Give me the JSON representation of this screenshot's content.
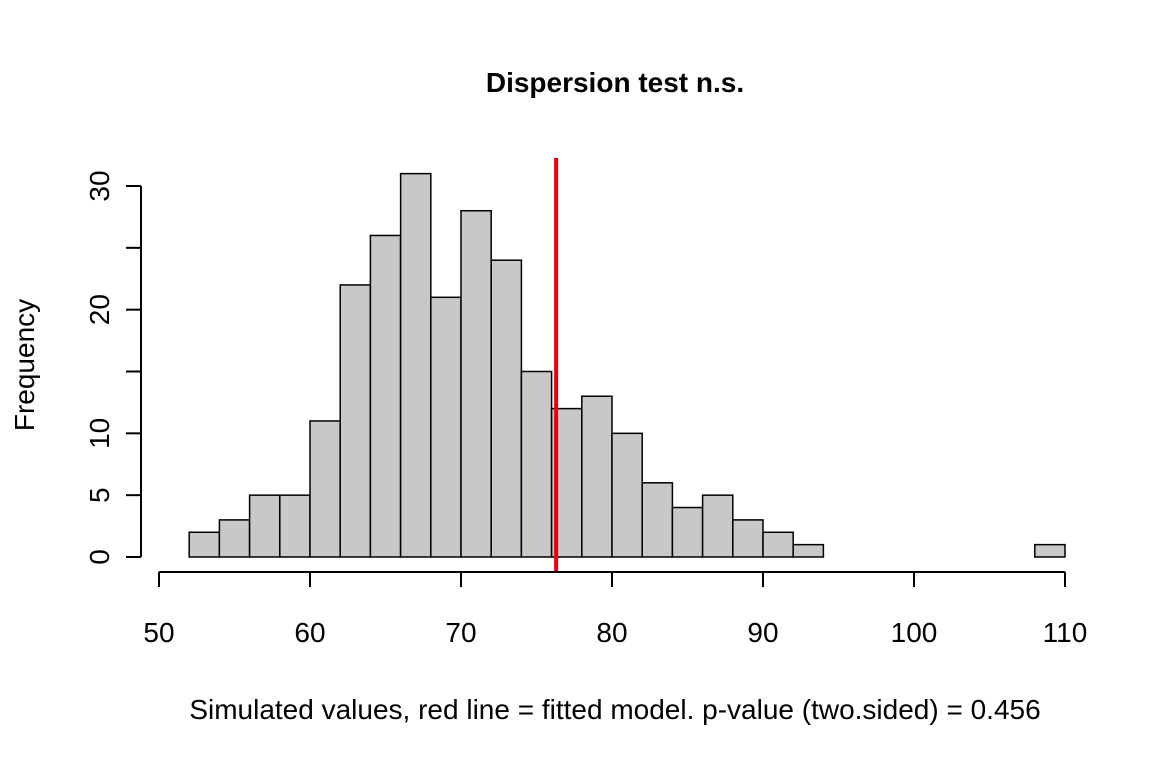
{
  "chart_data": {
    "type": "bar",
    "title": "Dispersion test n.s.",
    "xlabel": "Simulated values, red line = fitted model. p-value (two.sided) = 0.456",
    "ylabel": "Frequency",
    "xlim": [
      50,
      110
    ],
    "ylim": [
      0,
      31
    ],
    "x_ticks": [
      50,
      60,
      70,
      80,
      90,
      100,
      110
    ],
    "y_ticks": [
      0,
      5,
      10,
      15,
      20,
      25,
      30
    ],
    "y_tick_labels": [
      "0",
      "5",
      "10",
      "",
      "20",
      "",
      "30"
    ],
    "bin_width": 2,
    "bins": [
      {
        "start": 52,
        "end": 54,
        "count": 2
      },
      {
        "start": 54,
        "end": 56,
        "count": 3
      },
      {
        "start": 56,
        "end": 58,
        "count": 5
      },
      {
        "start": 58,
        "end": 60,
        "count": 5
      },
      {
        "start": 60,
        "end": 62,
        "count": 11
      },
      {
        "start": 62,
        "end": 64,
        "count": 22
      },
      {
        "start": 64,
        "end": 66,
        "count": 26
      },
      {
        "start": 66,
        "end": 68,
        "count": 31
      },
      {
        "start": 68,
        "end": 70,
        "count": 21
      },
      {
        "start": 70,
        "end": 72,
        "count": 28
      },
      {
        "start": 72,
        "end": 74,
        "count": 24
      },
      {
        "start": 74,
        "end": 76,
        "count": 15
      },
      {
        "start": 76,
        "end": 78,
        "count": 12
      },
      {
        "start": 78,
        "end": 80,
        "count": 13
      },
      {
        "start": 80,
        "end": 82,
        "count": 10
      },
      {
        "start": 82,
        "end": 84,
        "count": 6
      },
      {
        "start": 84,
        "end": 86,
        "count": 4
      },
      {
        "start": 86,
        "end": 88,
        "count": 5
      },
      {
        "start": 88,
        "end": 90,
        "count": 3
      },
      {
        "start": 90,
        "end": 92,
        "count": 2
      },
      {
        "start": 92,
        "end": 94,
        "count": 1
      },
      {
        "start": 94,
        "end": 96,
        "count": 0
      },
      {
        "start": 96,
        "end": 98,
        "count": 0
      },
      {
        "start": 98,
        "end": 100,
        "count": 0
      },
      {
        "start": 100,
        "end": 102,
        "count": 0
      },
      {
        "start": 102,
        "end": 104,
        "count": 0
      },
      {
        "start": 104,
        "end": 106,
        "count": 0
      },
      {
        "start": 106,
        "end": 108,
        "count": 0
      },
      {
        "start": 108,
        "end": 110,
        "count": 1
      }
    ],
    "reference_line": {
      "x": 76.3,
      "color": "#e8000b"
    },
    "bar_fill": "#c8c8c8",
    "bar_stroke": "#000000",
    "grid": false,
    "legend": "none"
  }
}
